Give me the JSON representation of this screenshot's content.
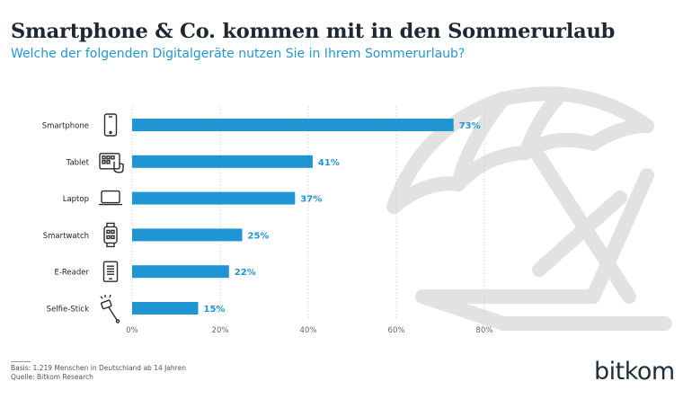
{
  "header": {
    "title": "Smartphone & Co. kommen mit in den Sommerurlaub",
    "subtitle": "Welche der folgenden Digitalgeräte nutzen Sie in Ihrem Sommerurlaub?"
  },
  "chart_data": {
    "type": "bar",
    "orientation": "horizontal",
    "categories": [
      "Smartphone",
      "Tablet",
      "Laptop",
      "Smartwatch",
      "E-Reader",
      "Selfie-Stick"
    ],
    "values": [
      73,
      41,
      37,
      25,
      22,
      15
    ],
    "value_labels": [
      "73%",
      "41%",
      "37%",
      "25%",
      "22%",
      "15%"
    ],
    "icons": [
      "smartphone-icon",
      "tablet-icon",
      "laptop-icon",
      "smartwatch-icon",
      "e-reader-icon",
      "selfie-stick-icon"
    ],
    "xlim": [
      0,
      80
    ],
    "ticks": [
      0,
      20,
      40,
      60,
      80
    ],
    "tick_labels": [
      "0%",
      "20%",
      "40%",
      "60%",
      "80%"
    ],
    "grid": true,
    "bar_color": "#1f95d3",
    "label_color": "#1f95d3"
  },
  "footer": {
    "basis": "Basis: 1.219 Menschen in Deutschland ab 14 Jahren",
    "source": "Quelle: Bitkom Research",
    "logo": "bitkom"
  },
  "colors": {
    "accent": "#2596d1",
    "title": "#1e2833",
    "art": "#e3e3e3"
  }
}
